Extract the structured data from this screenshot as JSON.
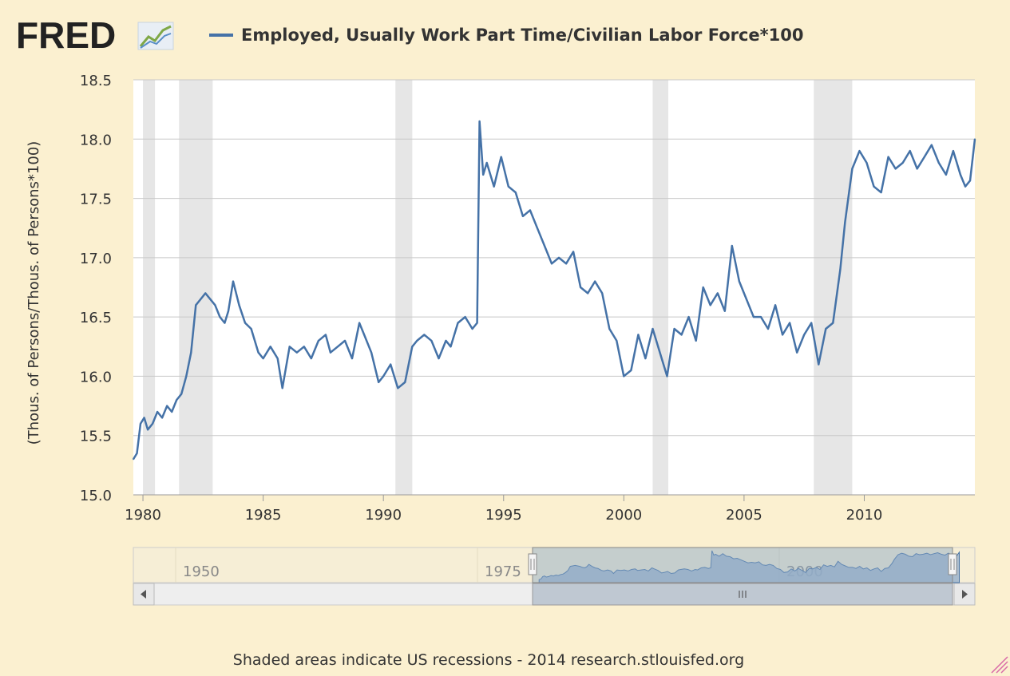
{
  "logo": {
    "text": "FRED"
  },
  "chart_data": {
    "type": "line",
    "title": "Employed, Usually Work Part Time/Civilian Labor Force*100",
    "xlabel": "",
    "ylabel": "(Thous. of Persons/Thous. of Persons*100)",
    "ylim": [
      15.0,
      18.5
    ],
    "xlim": [
      1979.6,
      2014.6
    ],
    "yticks": [
      "15.0",
      "15.5",
      "16.0",
      "16.5",
      "17.0",
      "17.5",
      "18.0",
      "18.5"
    ],
    "xticks": [
      "1980",
      "1985",
      "1990",
      "1995",
      "2000",
      "2005",
      "2010"
    ],
    "grid": true,
    "line_color": "#4572a7",
    "recession_color": "#e6e6e6",
    "recessions": [
      [
        1980.0,
        1980.5
      ],
      [
        1981.5,
        1982.9
      ],
      [
        1990.5,
        1991.2
      ],
      [
        2001.2,
        2001.85
      ],
      [
        2007.9,
        2009.5
      ]
    ],
    "series": [
      {
        "name": "Employed, Usually Work Part Time/Civilian Labor Force*100",
        "x": [
          1979.6,
          1979.75,
          1979.9,
          1980.05,
          1980.2,
          1980.4,
          1980.6,
          1980.8,
          1981.0,
          1981.2,
          1981.4,
          1981.6,
          1981.8,
          1982.0,
          1982.2,
          1982.4,
          1982.6,
          1982.8,
          1983.0,
          1983.2,
          1983.4,
          1983.55,
          1983.75,
          1984.0,
          1984.25,
          1984.5,
          1984.8,
          1985.0,
          1985.3,
          1985.6,
          1985.8,
          1986.1,
          1986.4,
          1986.7,
          1987.0,
          1987.3,
          1987.6,
          1987.8,
          1988.1,
          1988.4,
          1988.7,
          1989.0,
          1989.2,
          1989.5,
          1989.8,
          1990.0,
          1990.3,
          1990.6,
          1990.9,
          1991.2,
          1991.4,
          1991.7,
          1992.0,
          1992.3,
          1992.6,
          1992.8,
          1993.1,
          1993.4,
          1993.7,
          1993.9,
          1994.0,
          1994.15,
          1994.3,
          1994.6,
          1994.9,
          1995.2,
          1995.5,
          1995.8,
          1996.1,
          1996.4,
          1996.7,
          1997.0,
          1997.3,
          1997.6,
          1997.9,
          1998.2,
          1998.5,
          1998.8,
          1999.1,
          1999.4,
          1999.7,
          2000.0,
          2000.3,
          2000.6,
          2000.9,
          2001.2,
          2001.5,
          2001.8,
          2002.1,
          2002.4,
          2002.7,
          2003.0,
          2003.3,
          2003.6,
          2003.9,
          2004.2,
          2004.5,
          2004.8,
          2005.1,
          2005.4,
          2005.7,
          2006.0,
          2006.3,
          2006.6,
          2006.9,
          2007.2,
          2007.5,
          2007.8,
          2008.1,
          2008.4,
          2008.7,
          2009.0,
          2009.2,
          2009.5,
          2009.8,
          2010.1,
          2010.4,
          2010.7,
          2011.0,
          2011.3,
          2011.6,
          2011.9,
          2012.2,
          2012.5,
          2012.8,
          2013.1,
          2013.4,
          2013.7,
          2014.0,
          2014.2,
          2014.4,
          2014.6
        ],
        "y": [
          15.3,
          15.35,
          15.6,
          15.65,
          15.55,
          15.6,
          15.7,
          15.65,
          15.75,
          15.7,
          15.8,
          15.85,
          16.0,
          16.2,
          16.6,
          16.65,
          16.7,
          16.65,
          16.6,
          16.5,
          16.45,
          16.55,
          16.8,
          16.6,
          16.45,
          16.4,
          16.2,
          16.15,
          16.25,
          16.15,
          15.9,
          16.25,
          16.2,
          16.25,
          16.15,
          16.3,
          16.35,
          16.2,
          16.25,
          16.3,
          16.15,
          16.45,
          16.35,
          16.2,
          15.95,
          16.0,
          16.1,
          15.9,
          15.95,
          16.25,
          16.3,
          16.35,
          16.3,
          16.15,
          16.3,
          16.25,
          16.45,
          16.5,
          16.4,
          16.45,
          18.15,
          17.7,
          17.8,
          17.6,
          17.85,
          17.6,
          17.55,
          17.35,
          17.4,
          17.25,
          17.1,
          16.95,
          17.0,
          16.95,
          17.05,
          16.75,
          16.7,
          16.8,
          16.7,
          16.4,
          16.3,
          16.0,
          16.05,
          16.35,
          16.15,
          16.4,
          16.2,
          16.0,
          16.4,
          16.35,
          16.5,
          16.3,
          16.75,
          16.6,
          16.7,
          16.55,
          17.1,
          16.8,
          16.65,
          16.5,
          16.5,
          16.4,
          16.6,
          16.35,
          16.45,
          16.2,
          16.35,
          16.45,
          16.1,
          16.4,
          16.45,
          16.9,
          17.3,
          17.75,
          17.9,
          17.8,
          17.6,
          17.55,
          17.85,
          17.75,
          17.8,
          17.9,
          17.75,
          17.85,
          17.95,
          17.8,
          17.7,
          17.9,
          17.7,
          17.6,
          17.65,
          18.0
        ]
      }
    ]
  },
  "navigator": {
    "labels": [
      "1950",
      "1975",
      "2000"
    ]
  },
  "footer": {
    "text": "Shaded areas indicate US recessions - 2014 research.stlouisfed.org"
  }
}
